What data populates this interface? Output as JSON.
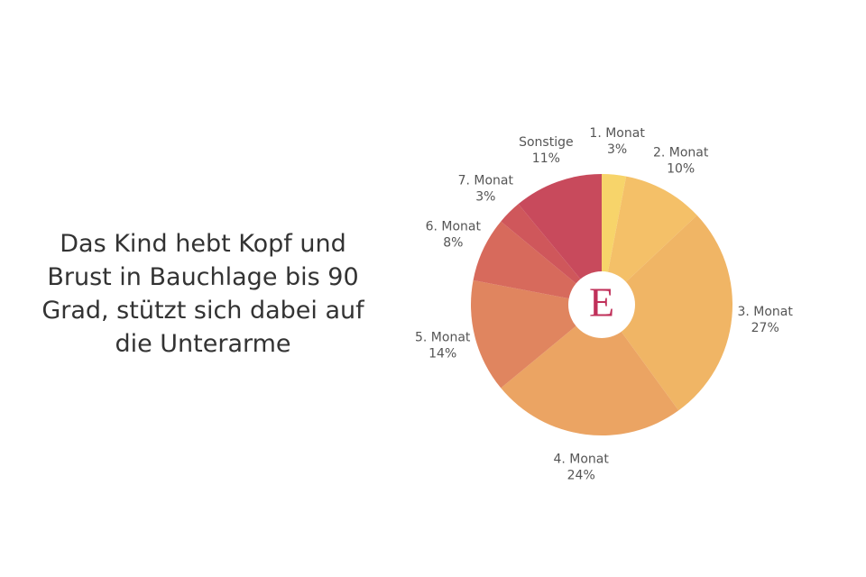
{
  "chart_data": {
    "type": "pie",
    "title": "Das Kind hebt Kopf und Brust in Bauchlage bis 90 Grad, stützt sich dabei auf die Unterarme",
    "center_label": "E",
    "categories": [
      "1. Monat",
      "2. Monat",
      "3. Monat",
      "4. Monat",
      "5. Monat",
      "6. Monat",
      "7. Monat",
      "Sonstige"
    ],
    "values": [
      3,
      10,
      27,
      24,
      14,
      8,
      3,
      11
    ],
    "value_labels": [
      "3%",
      "10%",
      "27%",
      "24%",
      "14%",
      "8%",
      "3%",
      "11%"
    ],
    "colors": [
      "#f7d46a",
      "#f4c068",
      "#f0b565",
      "#eba463",
      "#e0855f",
      "#d76a5c",
      "#cf575b",
      "#c84a5c"
    ]
  }
}
